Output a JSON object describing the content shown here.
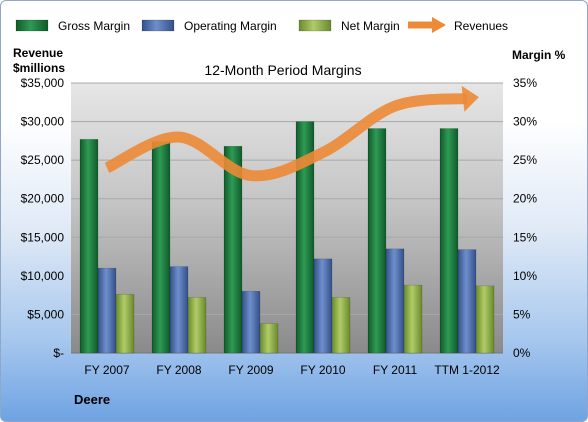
{
  "chart_data": {
    "type": "bar",
    "title": "12-Month Period Margins",
    "company": "Deere",
    "left_axis_label_line1": "Revenue",
    "left_axis_label_line2": "$millions",
    "right_axis_label": "Margin %",
    "categories": [
      "FY 2007",
      "FY 2008",
      "FY 2009",
      "FY 2010",
      "FY 2011",
      "TTM 1-2012"
    ],
    "series": [
      {
        "name": "Gross Margin",
        "type": "bar",
        "axis": "right",
        "color": "#1f7a3f",
        "values": [
          27.7,
          27.4,
          26.8,
          30.0,
          29.1,
          29.1
        ]
      },
      {
        "name": "Operating Margin",
        "type": "bar",
        "axis": "right",
        "color": "#4f6fb0",
        "values": [
          11.0,
          11.2,
          8.0,
          12.2,
          13.5,
          13.4
        ]
      },
      {
        "name": "Net Margin",
        "type": "bar",
        "axis": "right",
        "color": "#8fae48",
        "values": [
          7.6,
          7.2,
          3.8,
          7.2,
          8.8,
          8.7
        ]
      },
      {
        "name": "Revenues",
        "type": "line",
        "axis": "left",
        "color": "#ed8a35",
        "values": [
          24000,
          28000,
          23000,
          26000,
          32000,
          33000
        ]
      }
    ],
    "left_ylim": [
      0,
      35000
    ],
    "right_ylim": [
      0,
      35
    ],
    "left_ticks": [
      "$-",
      "$5,000",
      "$10,000",
      "$15,000",
      "$20,000",
      "$25,000",
      "$30,000",
      "$35,000"
    ],
    "right_ticks": [
      "0%",
      "5%",
      "10%",
      "15%",
      "20%",
      "25%",
      "30%",
      "35%"
    ],
    "legend_position": "top",
    "grid": true
  }
}
